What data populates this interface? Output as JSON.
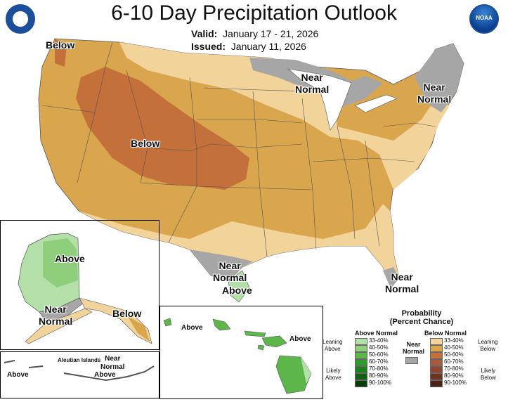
{
  "title": "6-10 Day Precipitation Outlook",
  "valid_label": "Valid:",
  "valid_value": "January 17 - 21, 2026",
  "issued_label": "Issued:",
  "issued_value": "January 11, 2026",
  "logos": {
    "left": "Department of Commerce seal",
    "right_text": "NOAA"
  },
  "map_labels": {
    "below_nw": "Below",
    "below_central": "Below",
    "near_normal_glakes": [
      "Near",
      "Normal"
    ],
    "near_normal_ne": [
      "Near",
      "Normal"
    ],
    "near_normal_tx": [
      "Near",
      "Normal"
    ],
    "above_tx": "Above",
    "near_normal_fl": [
      "Near",
      "Normal"
    ]
  },
  "alaska_labels": {
    "above": "Above",
    "near_normal": [
      "Near",
      "Normal"
    ],
    "below": "Below"
  },
  "aleutian": {
    "title": "Aleutian Islands",
    "above": "Above",
    "near_normal": [
      "Near",
      "Normal"
    ],
    "above2": "Above"
  },
  "hawaii_labels": {
    "above_left": "Above",
    "above_right": "Above"
  },
  "legend": {
    "title": [
      "Probability",
      "(Percent Chance)"
    ],
    "above_header": "Above Normal",
    "below_header": "Below Normal",
    "near_label": [
      "Near",
      "Normal"
    ],
    "leaning_above": [
      "Leaning",
      "Above"
    ],
    "likely_above": [
      "Likely",
      "Above"
    ],
    "leaning_below": [
      "Leaning",
      "Below"
    ],
    "likely_below": [
      "Likely",
      "Below"
    ],
    "above_bins": [
      {
        "label": "33-40%",
        "color": "#b3dfa8"
      },
      {
        "label": "40-50%",
        "color": "#8fcf7c"
      },
      {
        "label": "50-60%",
        "color": "#5cb64a"
      },
      {
        "label": "60-70%",
        "color": "#2e9b2a"
      },
      {
        "label": "70-80%",
        "color": "#1d7f1d"
      },
      {
        "label": "80-90%",
        "color": "#135e13"
      },
      {
        "label": "90-100%",
        "color": "#0b3d0b"
      }
    ],
    "below_bins": [
      {
        "label": "33-40%",
        "color": "#f2d39a"
      },
      {
        "label": "40-50%",
        "color": "#d9a64e"
      },
      {
        "label": "50-60%",
        "color": "#c4703a"
      },
      {
        "label": "60-70%",
        "color": "#a85a3a"
      },
      {
        "label": "70-80%",
        "color": "#8e4630"
      },
      {
        "label": "80-90%",
        "color": "#6e3220"
      },
      {
        "label": "90-100%",
        "color": "#4a2418"
      }
    ],
    "near_color": "#a6a6a6"
  }
}
